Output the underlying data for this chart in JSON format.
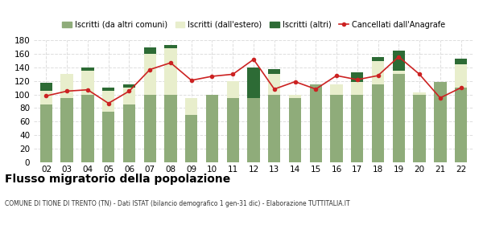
{
  "years": [
    "02",
    "03",
    "04",
    "05",
    "06",
    "07",
    "08",
    "09",
    "10",
    "11",
    "12",
    "13",
    "14",
    "15",
    "16",
    "17",
    "18",
    "19",
    "20",
    "21",
    "22"
  ],
  "iscritti_altri_comuni": [
    85,
    95,
    100,
    75,
    85,
    100,
    100,
    70,
    100,
    95,
    95,
    100,
    95,
    115,
    100,
    100,
    115,
    130,
    100,
    118,
    110
  ],
  "iscritti_estero": [
    20,
    35,
    35,
    30,
    25,
    60,
    68,
    25,
    0,
    25,
    0,
    30,
    5,
    0,
    15,
    18,
    35,
    5,
    3,
    0,
    35
  ],
  "iscritti_altri": [
    12,
    0,
    5,
    5,
    5,
    10,
    5,
    0,
    0,
    0,
    45,
    8,
    0,
    0,
    0,
    15,
    5,
    30,
    0,
    0,
    8
  ],
  "cancellati": [
    98,
    105,
    107,
    87,
    105,
    137,
    147,
    121,
    127,
    130,
    152,
    108,
    119,
    108,
    128,
    122,
    128,
    156,
    130,
    95,
    110
  ],
  "color_altri_comuni": "#8fac7a",
  "color_estero": "#e8eecc",
  "color_altri": "#2d6b35",
  "color_cancellati": "#cc2222",
  "background_color": "#ffffff",
  "grid_color": "#dddddd",
  "title": "Flusso migratorio della popolazione",
  "subtitle": "COMUNE DI TIONE DI TRENTO (TN) - Dati ISTAT (bilancio demografico 1 gen-31 dic) - Elaborazione TUTTITALIA.IT",
  "legend_labels": [
    "Iscritti (da altri comuni)",
    "Iscritti (dall'estero)",
    "Iscritti (altri)",
    "Cancellati dall'Anagrafe"
  ],
  "ylim": [
    0,
    180
  ],
  "yticks": [
    0,
    20,
    40,
    60,
    80,
    100,
    120,
    140,
    160,
    180
  ]
}
